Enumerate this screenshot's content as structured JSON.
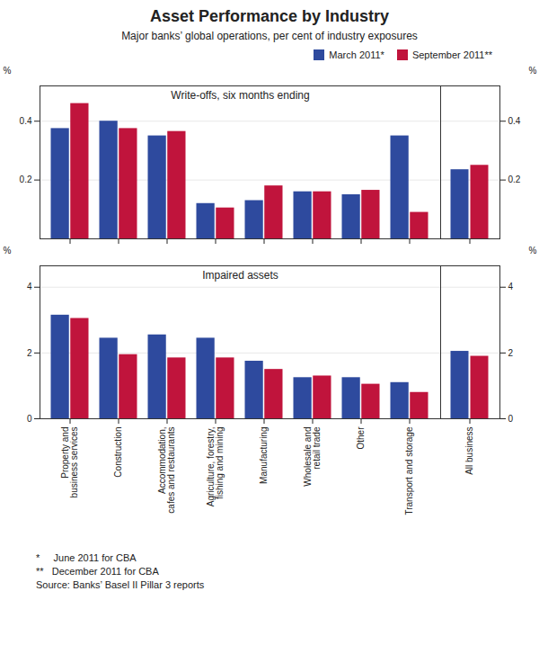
{
  "chart_data": [
    {
      "type": "bar",
      "title": "Asset Performance by Industry",
      "subtitle": "Major banks’ global operations, per cent of industry exposures",
      "annotations": [
        "Write-offs, six months ending"
      ],
      "footnotes": [
        "*     June 2011 for CBA",
        "**   December 2011 for CBA",
        "Source: Banks’ Basel II Pillar 3 reports"
      ],
      "categories": [
        null,
        null,
        null,
        null,
        null,
        null,
        null,
        null
      ],
      "series": [
        {
          "name": "March 2011*",
          "color": "#2E4A9E",
          "values": [
            0.375,
            0.4,
            0.35,
            0.12,
            0.13,
            0.16,
            0.15,
            0.35
          ]
        },
        {
          "name": "September 2011**",
          "color": "#C0143C",
          "values": [
            0.46,
            0.375,
            0.365,
            0.105,
            0.18,
            0.16,
            0.165,
            0.09
          ]
        }
      ],
      "ylabel": "%",
      "ylim": [
        0,
        0.52
      ],
      "yticks": [
        0.2,
        0.4
      ],
      "grid": true,
      "legend": "upper right",
      "tick_labels": "y"
    },
    {
      "type": "bar",
      "categories": [
        null
      ],
      "series": [
        {
          "name": "March 2011*",
          "color": "#2E4A9E",
          "values": [
            0.235
          ]
        },
        {
          "name": "September 2011**",
          "color": "#C0143C",
          "values": [
            0.25
          ]
        }
      ],
      "ylabel": "%",
      "ylim": [
        0,
        0.52
      ],
      "yticks": [
        0.2,
        0.4
      ],
      "grid": true,
      "tick_labels": "y"
    },
    {
      "type": "bar",
      "annotations": [
        "Impaired assets"
      ],
      "categories": [
        "Property and\nbusiness services",
        "Construction",
        "Accommodation,\ncafes and restaurants",
        "Agriculture, forestry,\nfishing and mining",
        "Manufacturing",
        "Wholesale and\nretail trade",
        "Other",
        "Transport and storage"
      ],
      "series": [
        {
          "name": "March 2011*",
          "color": "#2E4A9E",
          "values": [
            3.15,
            2.45,
            2.55,
            2.45,
            1.75,
            1.25,
            1.25,
            1.1
          ]
        },
        {
          "name": "September 2011**",
          "color": "#C0143C",
          "values": [
            3.05,
            1.95,
            1.85,
            1.85,
            1.5,
            1.3,
            1.05,
            0.8
          ]
        }
      ],
      "ylabel": "%",
      "ylim": [
        0,
        4.65
      ],
      "yticks": [
        0,
        2,
        4
      ],
      "grid": true
    },
    {
      "type": "bar",
      "categories": [
        "All business"
      ],
      "series": [
        {
          "name": "March 2011*",
          "color": "#2E4A9E",
          "values": [
            2.05
          ]
        },
        {
          "name": "September 2011**",
          "color": "#C0143C",
          "values": [
            1.9
          ]
        }
      ],
      "ylabel": "%",
      "ylim": [
        0,
        4.65
      ],
      "yticks": [
        0,
        2,
        4
      ],
      "grid": true
    }
  ]
}
